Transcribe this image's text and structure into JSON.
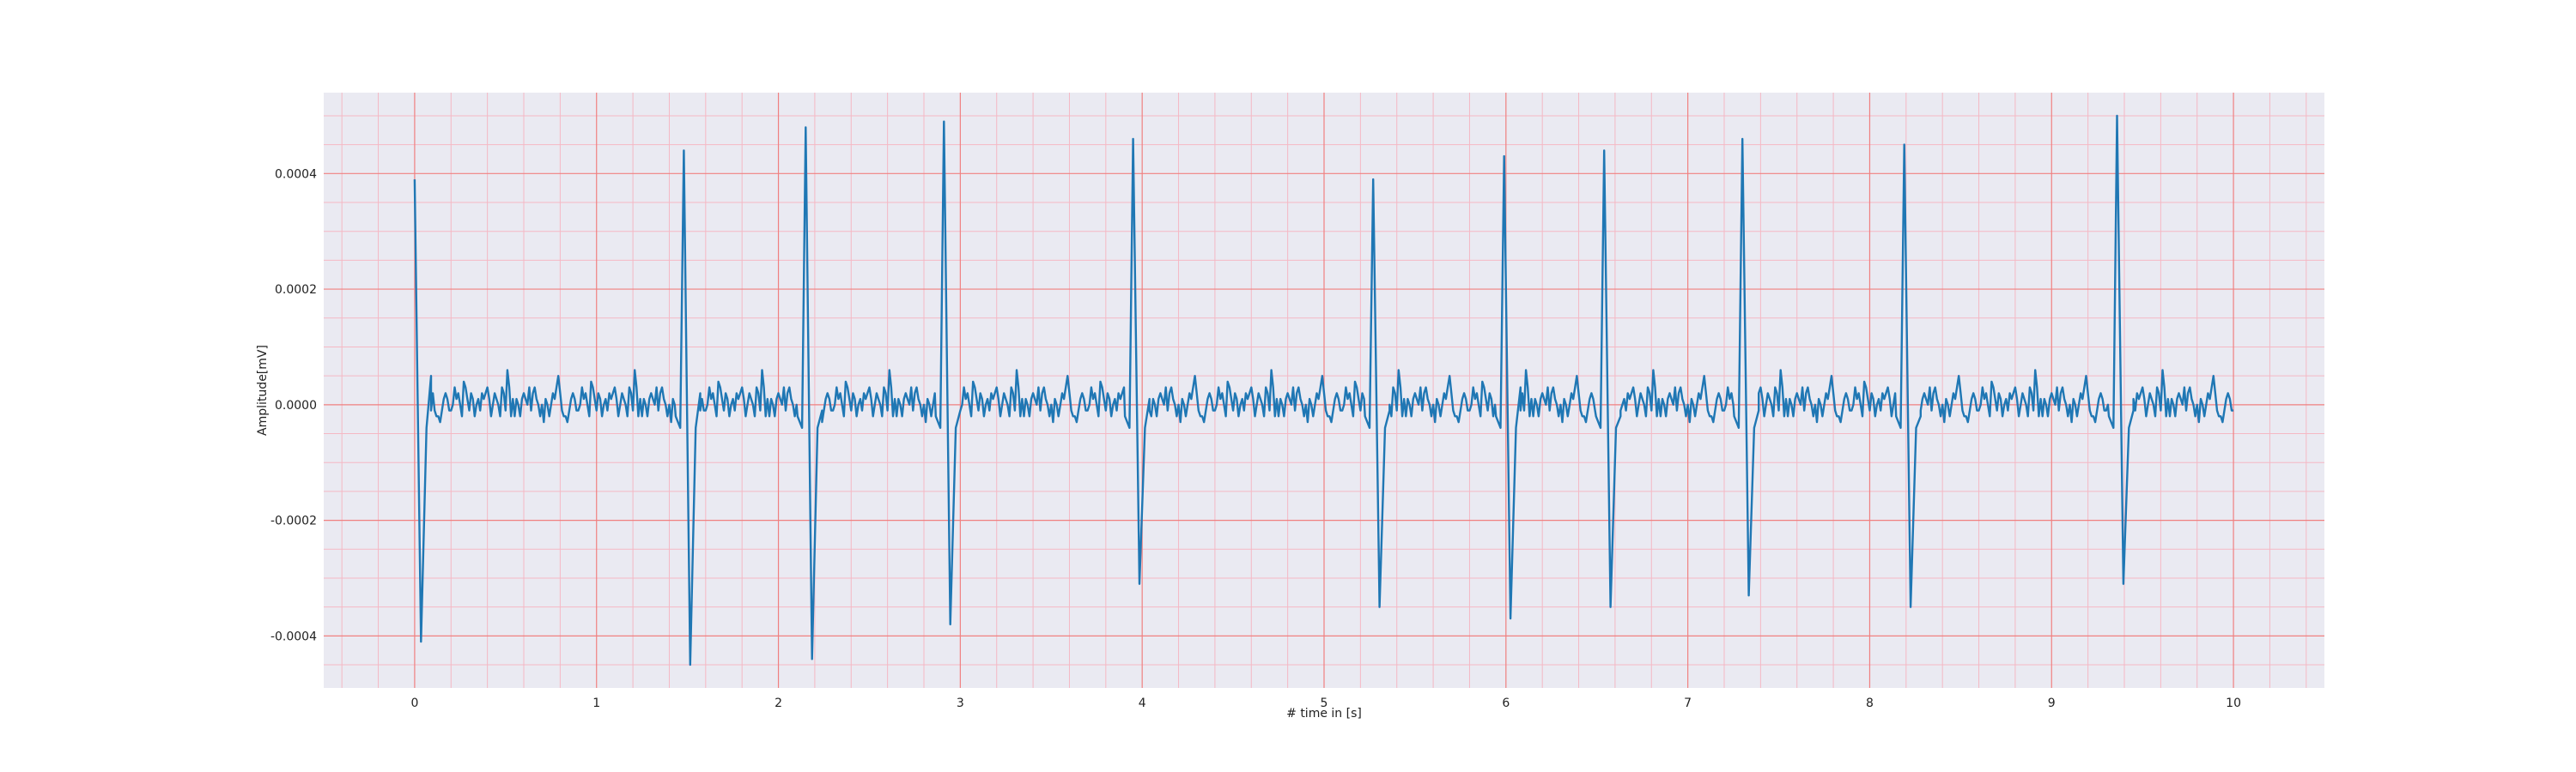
{
  "chart_data": {
    "type": "line",
    "title": "",
    "xlabel": "# time in [s]",
    "ylabel": "Amplitude[mV]",
    "xlim": [
      -0.5,
      10.5
    ],
    "ylim": [
      -0.00049,
      0.00054
    ],
    "x_ticks": [
      0,
      1,
      2,
      3,
      4,
      5,
      6,
      7,
      8,
      9,
      10
    ],
    "x_tick_labels": [
      "0",
      "1",
      "2",
      "3",
      "4",
      "5",
      "6",
      "7",
      "8",
      "9",
      "10"
    ],
    "y_ticks": [
      0.0004,
      0.0002,
      0.0,
      -0.0002,
      -0.0004
    ],
    "y_tick_labels": [
      "0.0004",
      "0.0002",
      "0.0000",
      "-0.0002",
      "-0.0004"
    ],
    "grid": true,
    "minor_grid": true,
    "colors": {
      "plot_background": "#eaeaf2",
      "major_grid": "#f08080",
      "minor_grid": "#f5b8c4",
      "line": "#1f77b4"
    },
    "series": [
      {
        "sampling_interval_s": 0.01,
        "beats": [
          {
            "t": 0.0,
            "r": 0.00039,
            "s": -0.00041
          },
          {
            "t": 1.48,
            "r": 0.00044,
            "s": -0.00045
          },
          {
            "t": 2.15,
            "r": 0.00048,
            "s": -0.00044
          },
          {
            "t": 2.91,
            "r": 0.00049,
            "s": -0.00038
          },
          {
            "t": 3.95,
            "r": 0.00046,
            "s": -0.00031
          },
          {
            "t": 5.27,
            "r": 0.00039,
            "s": -0.00035
          },
          {
            "t": 5.99,
            "r": 0.00043,
            "s": -0.00037
          },
          {
            "t": 6.54,
            "r": 0.00044,
            "s": -0.00035
          },
          {
            "t": 7.3,
            "r": 0.00046,
            "s": -0.00033
          },
          {
            "t": 8.19,
            "r": 0.00045,
            "s": -0.00035
          },
          {
            "t": 9.36,
            "r": 0.0005,
            "s": -0.00031
          }
        ],
        "values": [
          0.0,
          -3e-05,
          1e-05,
          0.0,
          -2e-05,
          0.0,
          2e-05,
          1e-05,
          3e-05,
          5e-05,
          2e-05,
          -1e-05,
          -2e-05,
          -2e-05,
          -3e-05,
          -1e-05,
          1e-05,
          2e-05,
          1e-05,
          -1e-05,
          -1e-05,
          0.0,
          3e-05,
          1e-05,
          2e-05,
          0.0,
          -2e-05,
          4e-05,
          3e-05,
          1e-05,
          -1e-05,
          2e-05,
          1e-05,
          -2e-05,
          0.0,
          1e-05,
          -1e-05,
          2e-05,
          1e-05,
          2e-05,
          3e-05,
          1e-05,
          -2e-05,
          0.0,
          2e-05,
          1e-05,
          0.0,
          -2e-05,
          3e-05,
          2e-05,
          -1e-05,
          6e-05,
          3e-05,
          -2e-05,
          1e-05,
          -2e-05,
          1e-05,
          0.0,
          -2e-05,
          1e-05,
          2e-05,
          1e-05,
          0.0,
          3e-05,
          -1e-05,
          2e-05,
          3e-05,
          1e-05,
          0.0,
          -2e-05
        ]
      }
    ]
  }
}
